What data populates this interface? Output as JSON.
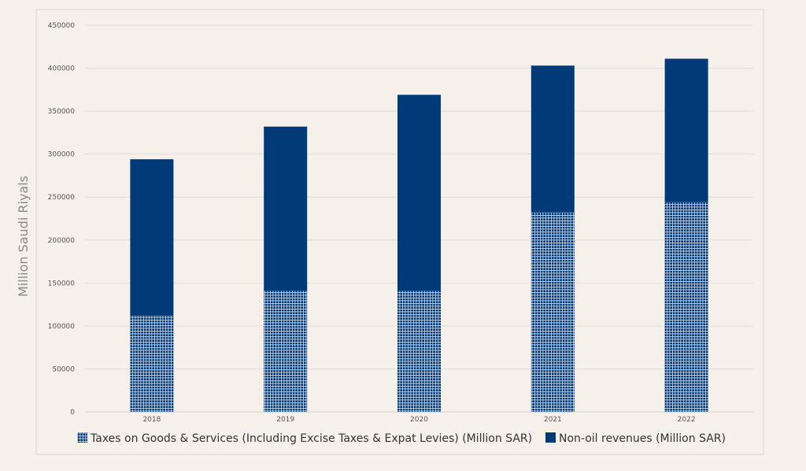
{
  "chart_data": {
    "type": "bar",
    "stacked": true,
    "categories": [
      "2018",
      "2019",
      "2020",
      "2021",
      "2022"
    ],
    "series": [
      {
        "name": "Taxes on Goods & Services (Including Excise Taxes & Expat Levies) (Million SAR)",
        "values": [
          112000,
          141000,
          141000,
          232000,
          244000
        ],
        "color": "#003a78",
        "pattern": "grid"
      },
      {
        "name": "Non-oil revenues (Million SAR)",
        "values": [
          182000,
          191000,
          228000,
          171000,
          167000
        ],
        "color": "#003a78",
        "pattern": "solid"
      }
    ],
    "totals": [
      294000,
      332000,
      369000,
      403000,
      411000
    ],
    "ylabel": "Million Saudi Riyals",
    "xlabel": "",
    "ylim": [
      0,
      450000
    ],
    "yticks": [
      0,
      50000,
      100000,
      150000,
      200000,
      250000,
      300000,
      350000,
      400000,
      450000
    ],
    "grid": true,
    "legend_position": "bottom"
  }
}
